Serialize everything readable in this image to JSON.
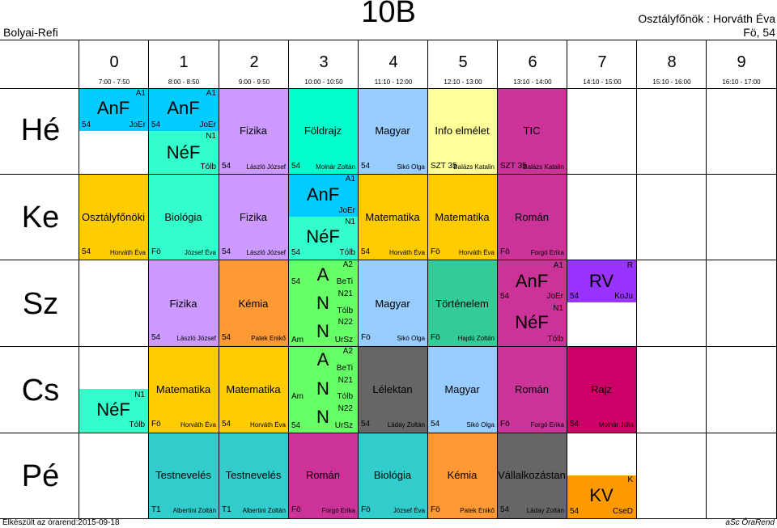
{
  "header": {
    "school": "Bolyai-Refi",
    "class": "10B",
    "teacher_line": "Osztályfőnök : Horváth Éva",
    "room_line": "Fö, 54"
  },
  "footer": {
    "left": "Elkészült az órarend:2015-09-18",
    "right": "aSc ÓraRend"
  },
  "periods": [
    {
      "num": "0",
      "time": "7:00 - 7:50"
    },
    {
      "num": "1",
      "time": "8:00 - 8:50"
    },
    {
      "num": "2",
      "time": "9:00 - 9:50"
    },
    {
      "num": "3",
      "time": "10:00 - 10:50"
    },
    {
      "num": "4",
      "time": "11:10 - 12:00"
    },
    {
      "num": "5",
      "time": "12:10 - 13:00"
    },
    {
      "num": "6",
      "time": "13:10 - 14:00"
    },
    {
      "num": "7",
      "time": "14:10 - 15:00"
    },
    {
      "num": "8",
      "time": "15:10 - 16:00"
    },
    {
      "num": "9",
      "time": "16:10 - 17:00"
    }
  ],
  "days": [
    "Hé",
    "Ke",
    "Sz",
    "Cs",
    "Pé"
  ],
  "colors": {
    "anf": "#00ccff",
    "nef": "#33ffcc",
    "fizika": "#cc99ff",
    "foldrajz": "#00ffcc",
    "magyar": "#99ccff",
    "info": "#ffff99",
    "tic": "#cc3399",
    "osztf": "#ffcc00",
    "bio": "#33cccc",
    "math": "#ffcc00",
    "roman": "#cc3399",
    "kemia": "#ff9933",
    "green": "#66ff66",
    "tort": "#33cc99",
    "lelektan": "#666666",
    "rajz": "#cc0066",
    "rv": "#9933ff",
    "vall": "#666666",
    "kv": "#ff9900",
    "test": "#33cccc"
  },
  "lessons": {
    "he_anf": {
      "subj": "AnF",
      "grp": "A1",
      "room": "54",
      "teacher": "JoEr"
    },
    "he_anf2": {
      "subj": "AnF",
      "grp": "A1",
      "room": "54",
      "teacher": "JoEr"
    },
    "he_nef": {
      "subj": "NéF",
      "grp": "N1",
      "room": "Tólb"
    },
    "he_fiz": {
      "subj": "Fizika",
      "room": "54",
      "teacher": "László József"
    },
    "he_fold": {
      "subj": "Földrajz",
      "room": "54",
      "teacher": "Molnár Zoltán"
    },
    "he_mag": {
      "subj": "Magyar",
      "room": "54",
      "teacher": "Sikó Olga"
    },
    "he_info": {
      "subj": "Info elmélet",
      "room": "SZT 35",
      "teacher": "Balázs Katalin"
    },
    "he_tic": {
      "subj": "TIC",
      "room": "SZT 35",
      "teacher": "Balázs Katalin"
    },
    "ke_osz": {
      "subj": "Osztályfőnöki",
      "room": "54",
      "teacher": "Horváth Éva"
    },
    "ke_bio": {
      "subj": "Biológia",
      "room": "Fö",
      "teacher": "József Éva"
    },
    "ke_fiz": {
      "subj": "Fizika",
      "room": "54",
      "teacher": "László József"
    },
    "ke_anf": {
      "subj": "AnF",
      "grp": "A1",
      "teacher": "JoEr"
    },
    "ke_nef": {
      "subj": "NéF",
      "grp": "N1",
      "room": "54",
      "teacher": "Tólb"
    },
    "ke_mat1": {
      "subj": "Matematika",
      "room": "54",
      "teacher": "Horváth Éva"
    },
    "ke_mat2": {
      "subj": "Matematika",
      "room": "Fö",
      "teacher": "Horváth Éva"
    },
    "ke_rom": {
      "subj": "Román",
      "room": "Fö",
      "teacher": "Forgó Erika"
    },
    "sz_fiz": {
      "subj": "Fizika",
      "room": "54",
      "teacher": "László József"
    },
    "sz_kem": {
      "subj": "Kémia",
      "room": "54",
      "teacher": "Patek Enikő"
    },
    "sz_a": {
      "subj": "A",
      "grp": "A2",
      "room": "54",
      "teacher": "BeTi"
    },
    "sz_n1": {
      "subj": "N",
      "grp": "N21",
      "teacher": "Tólb"
    },
    "sz_n2": {
      "subj": "N",
      "grp": "N22",
      "room": "Am",
      "teacher": "UrSz"
    },
    "sz_mag": {
      "subj": "Magyar",
      "room": "Fö",
      "teacher": "Sikó Olga"
    },
    "sz_tort": {
      "subj": "Történelem",
      "room": "Fö",
      "teacher": "Hajdú Zoltán"
    },
    "sz_anf": {
      "subj": "AnF",
      "grp": "A1",
      "room": "54",
      "teacher": "JoEr"
    },
    "sz_nef": {
      "subj": "NéF",
      "grp": "N1",
      "teacher": "Tólb"
    },
    "sz_rv": {
      "subj": "RV",
      "grp": "R",
      "room": "54",
      "teacher": "KoJu"
    },
    "cs_nef": {
      "subj": "NéF",
      "grp": "N1",
      "teacher": "Tólb"
    },
    "cs_mat1": {
      "subj": "Matematika",
      "room": "Fö",
      "teacher": "Horváth Éva"
    },
    "cs_mat2": {
      "subj": "Matematika",
      "room": "54",
      "teacher": "Horváth Éva"
    },
    "cs_a": {
      "subj": "A",
      "grp": "A2",
      "teacher": "BeTi"
    },
    "cs_n1": {
      "subj": "N",
      "grp": "N21",
      "room": "Am",
      "teacher": "Tólb"
    },
    "cs_n2": {
      "subj": "N",
      "grp": "N22",
      "room": "54",
      "teacher": "UrSz"
    },
    "cs_lel": {
      "subj": "Lélektan",
      "room": "54",
      "teacher": "Láday Zoltán"
    },
    "cs_mag": {
      "subj": "Magyar",
      "room": "54",
      "teacher": "Sikó Olga"
    },
    "cs_rom": {
      "subj": "Román",
      "room": "Fö",
      "teacher": "Forgó Erika"
    },
    "cs_rajz": {
      "subj": "Rajz",
      "room": "54",
      "teacher": "Molnár Júlia"
    },
    "pe_test1": {
      "subj": "Testnevelés",
      "room": "T1",
      "teacher": "Albertini Zoltán"
    },
    "pe_test2": {
      "subj": "Testnevelés",
      "room": "T1",
      "teacher": "Albertini Zoltán"
    },
    "pe_rom": {
      "subj": "Román",
      "room": "Fö",
      "teacher": "Forgó Erika"
    },
    "pe_bio": {
      "subj": "Biológia",
      "room": "Fö",
      "teacher": "József Éva"
    },
    "pe_kem": {
      "subj": "Kémia",
      "room": "Fö",
      "teacher": "Patek Enikő"
    },
    "pe_vall": {
      "subj": "Vállalkozástan",
      "room": "54",
      "teacher": "Láday Zoltán"
    },
    "pe_kv": {
      "subj": "KV",
      "grp": "K",
      "room": "54",
      "teacher": "CseD"
    }
  }
}
